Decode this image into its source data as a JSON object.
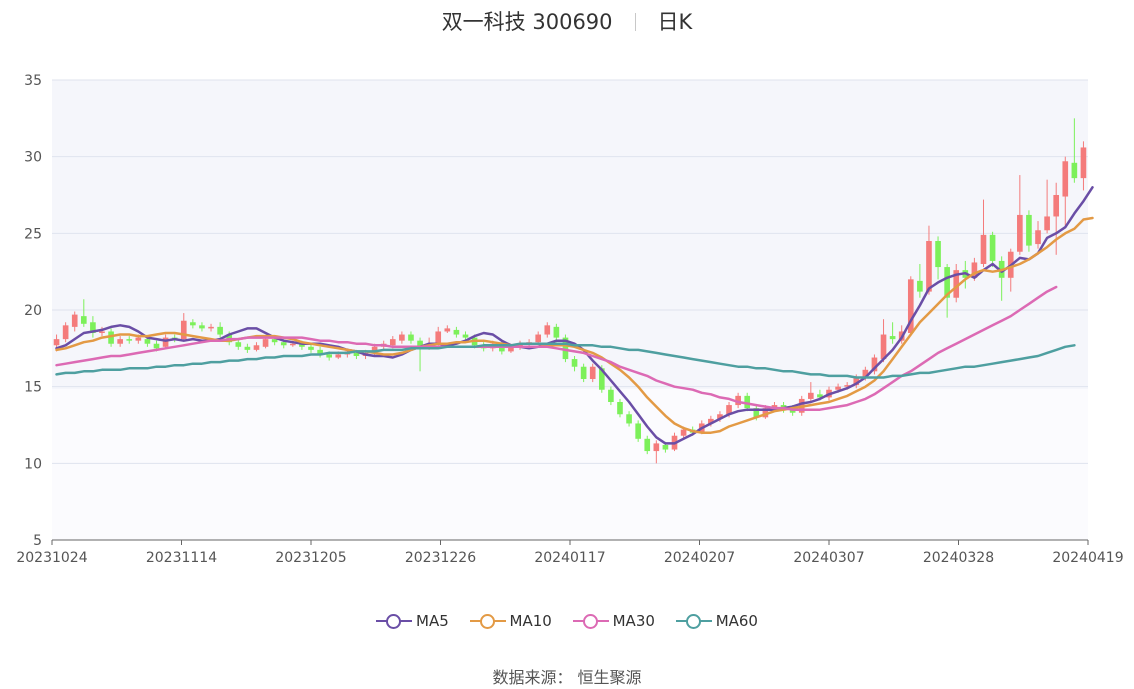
{
  "title": {
    "name": "双一科技 300690",
    "period": "日K"
  },
  "source": {
    "label": "数据来源：",
    "value": "恒生聚源"
  },
  "colors": {
    "up": "#f47b7b",
    "down": "#7cf05a",
    "MA5": "#6a4ea6",
    "MA10": "#e39a45",
    "MA30": "#dc6ab4",
    "MA60": "#4e9fa0",
    "plotBg": "#f5f6fb",
    "grid": "#dfe3ee"
  },
  "chart_data": {
    "type": "candlestick",
    "ylim": [
      5,
      35
    ],
    "yticks": [
      5,
      10,
      15,
      20,
      25,
      30,
      35
    ],
    "xticks": [
      "20231024",
      "20231114",
      "20231205",
      "20231226",
      "20240117",
      "20240207",
      "20240307",
      "20240328",
      "20240419"
    ],
    "legend_position": "bottom",
    "grid": true,
    "candles": [
      [
        17.7,
        18.1,
        18.4,
        17.3
      ],
      [
        18.1,
        19.0,
        19.2,
        17.9
      ],
      [
        18.9,
        19.7,
        19.9,
        18.6
      ],
      [
        19.6,
        19.1,
        20.7,
        18.9
      ],
      [
        19.2,
        18.5,
        19.6,
        18.2
      ],
      [
        18.5,
        18.6,
        18.9,
        18.3
      ],
      [
        18.6,
        17.8,
        18.8,
        17.6
      ],
      [
        17.8,
        18.1,
        18.3,
        17.6
      ],
      [
        18.1,
        18.0,
        18.3,
        17.8
      ],
      [
        18.0,
        18.2,
        18.4,
        17.8
      ],
      [
        18.1,
        17.8,
        18.3,
        17.6
      ],
      [
        17.8,
        17.5,
        18.0,
        17.3
      ],
      [
        17.6,
        18.2,
        18.4,
        17.5
      ],
      [
        18.2,
        18.1,
        18.4,
        17.9
      ],
      [
        18.1,
        19.3,
        19.8,
        18.0
      ],
      [
        19.2,
        19.0,
        19.4,
        18.8
      ],
      [
        19.0,
        18.8,
        19.2,
        18.6
      ],
      [
        18.8,
        18.9,
        19.1,
        18.6
      ],
      [
        18.9,
        18.4,
        19.2,
        18.2
      ],
      [
        18.4,
        17.9,
        18.6,
        17.7
      ],
      [
        17.9,
        17.6,
        18.1,
        17.4
      ],
      [
        17.6,
        17.4,
        17.8,
        17.2
      ],
      [
        17.4,
        17.7,
        17.9,
        17.3
      ],
      [
        17.6,
        18.1,
        18.3,
        17.5
      ],
      [
        18.1,
        17.9,
        18.3,
        17.7
      ],
      [
        17.9,
        17.7,
        18.1,
        17.5
      ],
      [
        17.7,
        17.8,
        18.0,
        17.6
      ],
      [
        17.8,
        17.6,
        18.0,
        17.4
      ],
      [
        17.6,
        17.4,
        17.8,
        17.2
      ],
      [
        17.4,
        17.1,
        17.6,
        16.9
      ],
      [
        17.1,
        16.9,
        17.3,
        16.7
      ],
      [
        16.9,
        17.1,
        17.3,
        16.8
      ],
      [
        17.1,
        17.3,
        17.5,
        16.9
      ],
      [
        17.2,
        17.0,
        17.4,
        16.8
      ],
      [
        17.0,
        17.2,
        17.4,
        16.8
      ],
      [
        17.2,
        17.6,
        17.8,
        17.0
      ],
      [
        17.6,
        17.8,
        18.0,
        17.4
      ],
      [
        17.7,
        18.1,
        18.3,
        17.5
      ],
      [
        18.0,
        18.4,
        18.6,
        17.8
      ],
      [
        18.4,
        18.0,
        18.6,
        17.8
      ],
      [
        18.0,
        17.6,
        18.2,
        16.0
      ],
      [
        17.6,
        17.8,
        18.2,
        17.4
      ],
      [
        17.8,
        18.6,
        18.9,
        17.6
      ],
      [
        18.6,
        18.8,
        19.0,
        18.5
      ],
      [
        18.7,
        18.4,
        18.9,
        18.2
      ],
      [
        18.4,
        18.2,
        18.6,
        18.0
      ],
      [
        18.2,
        17.7,
        18.4,
        17.5
      ],
      [
        17.7,
        17.5,
        17.9,
        17.3
      ],
      [
        17.5,
        17.8,
        18.0,
        17.3
      ],
      [
        17.8,
        17.3,
        18.0,
        17.1
      ],
      [
        17.3,
        17.6,
        17.8,
        17.2
      ],
      [
        17.6,
        17.8,
        18.0,
        17.4
      ],
      [
        17.8,
        17.9,
        18.1,
        17.6
      ],
      [
        17.9,
        18.4,
        18.6,
        17.7
      ],
      [
        18.4,
        19.0,
        19.2,
        18.2
      ],
      [
        18.9,
        18.2,
        19.1,
        17.9
      ],
      [
        18.2,
        16.8,
        18.4,
        16.6
      ],
      [
        16.8,
        16.3,
        17.0,
        16.0
      ],
      [
        16.3,
        15.5,
        16.5,
        15.3
      ],
      [
        15.5,
        16.3,
        16.5,
        15.3
      ],
      [
        16.2,
        14.8,
        16.4,
        14.6
      ],
      [
        14.8,
        14.0,
        15.0,
        13.8
      ],
      [
        14.0,
        13.2,
        14.2,
        13.0
      ],
      [
        13.2,
        12.6,
        13.4,
        12.4
      ],
      [
        12.6,
        11.6,
        12.8,
        11.4
      ],
      [
        11.6,
        10.8,
        11.8,
        10.6
      ],
      [
        10.8,
        11.3,
        11.5,
        10.0
      ],
      [
        11.2,
        10.9,
        11.4,
        10.7
      ],
      [
        10.9,
        11.8,
        12.0,
        10.8
      ],
      [
        11.8,
        12.2,
        12.4,
        11.6
      ],
      [
        12.2,
        12.0,
        12.4,
        11.8
      ],
      [
        12.0,
        12.6,
        12.8,
        11.9
      ],
      [
        12.6,
        12.9,
        13.1,
        12.4
      ],
      [
        12.9,
        13.2,
        13.4,
        12.7
      ],
      [
        13.2,
        13.8,
        14.0,
        13.0
      ],
      [
        13.8,
        14.4,
        14.6,
        13.6
      ],
      [
        14.4,
        13.6,
        14.6,
        13.4
      ],
      [
        13.6,
        13.0,
        13.8,
        12.8
      ],
      [
        13.0,
        13.6,
        13.8,
        12.9
      ],
      [
        13.6,
        13.8,
        14.0,
        13.4
      ],
      [
        13.8,
        13.6,
        14.0,
        13.3
      ],
      [
        13.6,
        13.3,
        13.8,
        13.1
      ],
      [
        13.3,
        14.2,
        14.4,
        13.1
      ],
      [
        14.2,
        14.6,
        15.3,
        14.0
      ],
      [
        14.5,
        14.3,
        14.8,
        14.1
      ],
      [
        14.3,
        14.8,
        15.0,
        14.1
      ],
      [
        14.8,
        15.0,
        15.2,
        14.6
      ],
      [
        15.0,
        15.1,
        15.3,
        14.8
      ],
      [
        15.1,
        15.6,
        15.8,
        14.9
      ],
      [
        15.6,
        16.1,
        16.3,
        15.4
      ],
      [
        16.0,
        16.9,
        17.1,
        15.8
      ],
      [
        16.8,
        18.4,
        19.4,
        16.6
      ],
      [
        18.3,
        18.1,
        19.2,
        17.8
      ],
      [
        18.0,
        18.6,
        19.0,
        17.8
      ],
      [
        18.5,
        22.0,
        22.2,
        18.3
      ],
      [
        21.9,
        21.2,
        23.0,
        20.8
      ],
      [
        21.2,
        24.5,
        25.5,
        21.0
      ],
      [
        24.5,
        22.8,
        24.8,
        22.0
      ],
      [
        22.8,
        20.8,
        23.0,
        19.5
      ],
      [
        20.8,
        22.6,
        23.0,
        20.5
      ],
      [
        22.6,
        22.1,
        23.2,
        21.4
      ],
      [
        22.1,
        23.1,
        23.4,
        21.9
      ],
      [
        23.0,
        24.9,
        27.2,
        22.8
      ],
      [
        24.9,
        23.2,
        25.1,
        22.8
      ],
      [
        23.2,
        22.1,
        23.5,
        20.6
      ],
      [
        22.1,
        23.8,
        24.0,
        21.2
      ],
      [
        23.8,
        26.2,
        28.8,
        23.6
      ],
      [
        26.2,
        24.2,
        26.5,
        23.8
      ],
      [
        24.3,
        25.2,
        25.8,
        24.0
      ],
      [
        25.2,
        26.1,
        28.5,
        25.0
      ],
      [
        26.1,
        27.5,
        28.3,
        23.6
      ],
      [
        27.4,
        29.7,
        30.0,
        25.5
      ],
      [
        29.6,
        28.6,
        32.5,
        28.3
      ],
      [
        28.6,
        30.6,
        31.0,
        27.8
      ]
    ],
    "series": [
      {
        "name": "MA5",
        "values": [
          17.5,
          17.7,
          18.1,
          18.5,
          18.6,
          18.7,
          18.9,
          19.0,
          18.9,
          18.6,
          18.2,
          18.1,
          18.0,
          18.1,
          18.0,
          18.1,
          18.0,
          18.0,
          18.1,
          18.4,
          18.6,
          18.8,
          18.8,
          18.5,
          18.2,
          18.0,
          17.9,
          17.8,
          17.8,
          17.8,
          17.7,
          17.6,
          17.4,
          17.3,
          17.1,
          17.0,
          17.0,
          16.9,
          17.1,
          17.4,
          17.6,
          17.8,
          17.8,
          17.7,
          17.8,
          18.0,
          18.3,
          18.5,
          18.4,
          18.0,
          17.7,
          17.6,
          17.5,
          17.6,
          17.8,
          18.0,
          18.0,
          17.8,
          17.4,
          16.7,
          16.1,
          15.4,
          14.7,
          14.0,
          13.2,
          12.4,
          11.7,
          11.3,
          11.3,
          11.6,
          11.9,
          12.3,
          12.6,
          12.9,
          13.2,
          13.4,
          13.5,
          13.5,
          13.5,
          13.5,
          13.6,
          13.7,
          13.9,
          14.0,
          14.2,
          14.5,
          14.7,
          14.9,
          15.2,
          15.6,
          16.2,
          16.8,
          17.4,
          18.2,
          19.3,
          20.3,
          21.4,
          21.8,
          22.1,
          22.3,
          22.4,
          22.1,
          22.6,
          23.0,
          22.5,
          22.9,
          23.4,
          23.3,
          23.7,
          24.7,
          25.0,
          25.4,
          26.3,
          27.1,
          28.0
        ]
      },
      {
        "name": "MA10",
        "values": [
          17.4,
          17.5,
          17.7,
          17.9,
          18.0,
          18.2,
          18.3,
          18.4,
          18.4,
          18.3,
          18.3,
          18.4,
          18.5,
          18.5,
          18.4,
          18.3,
          18.2,
          18.1,
          18.0,
          18.0,
          18.1,
          18.2,
          18.3,
          18.3,
          18.3,
          18.2,
          18.1,
          17.9,
          17.8,
          17.7,
          17.6,
          17.5,
          17.4,
          17.3,
          17.3,
          17.2,
          17.1,
          17.1,
          17.2,
          17.4,
          17.6,
          17.7,
          17.8,
          17.8,
          17.9,
          17.9,
          18.0,
          18.0,
          17.9,
          17.8,
          17.7,
          17.6,
          17.6,
          17.6,
          17.7,
          17.7,
          17.7,
          17.6,
          17.4,
          17.2,
          16.9,
          16.5,
          16.1,
          15.6,
          15.0,
          14.3,
          13.7,
          13.1,
          12.6,
          12.3,
          12.1,
          12.0,
          12.0,
          12.1,
          12.4,
          12.6,
          12.8,
          13.0,
          13.2,
          13.4,
          13.5,
          13.6,
          13.7,
          13.8,
          13.9,
          14.0,
          14.2,
          14.4,
          14.7,
          15.0,
          15.4,
          16.0,
          16.8,
          17.6,
          18.4,
          19.2,
          19.8,
          20.4,
          21.0,
          21.5,
          22.0,
          22.4,
          22.6,
          22.5,
          22.6,
          22.8,
          23.0,
          23.3,
          23.7,
          24.1,
          24.6,
          25.0,
          25.3,
          25.9,
          26.0
        ]
      },
      {
        "name": "MA30",
        "values": [
          16.4,
          16.5,
          16.6,
          16.7,
          16.8,
          16.9,
          17.0,
          17.0,
          17.1,
          17.2,
          17.3,
          17.4,
          17.5,
          17.6,
          17.7,
          17.8,
          17.9,
          18.0,
          18.0,
          18.1,
          18.1,
          18.2,
          18.2,
          18.2,
          18.2,
          18.2,
          18.2,
          18.2,
          18.1,
          18.0,
          18.0,
          17.9,
          17.9,
          17.8,
          17.8,
          17.7,
          17.7,
          17.6,
          17.6,
          17.6,
          17.6,
          17.6,
          17.6,
          17.6,
          17.6,
          17.6,
          17.6,
          17.6,
          17.6,
          17.6,
          17.6,
          17.6,
          17.6,
          17.6,
          17.6,
          17.5,
          17.4,
          17.3,
          17.2,
          17.0,
          16.8,
          16.6,
          16.3,
          16.1,
          15.9,
          15.7,
          15.4,
          15.2,
          15.0,
          14.9,
          14.8,
          14.6,
          14.5,
          14.3,
          14.2,
          14.0,
          13.9,
          13.8,
          13.7,
          13.6,
          13.6,
          13.5,
          13.5,
          13.5,
          13.5,
          13.6,
          13.7,
          13.8,
          14.0,
          14.2,
          14.5,
          14.9,
          15.3,
          15.7,
          16.0,
          16.4,
          16.8,
          17.2,
          17.5,
          17.8,
          18.1,
          18.4,
          18.7,
          19.0,
          19.3,
          19.6,
          20.0,
          20.4,
          20.8,
          21.2,
          21.5
        ]
      },
      {
        "name": "MA60",
        "values": [
          15.8,
          15.9,
          15.9,
          16.0,
          16.0,
          16.1,
          16.1,
          16.1,
          16.2,
          16.2,
          16.2,
          16.3,
          16.3,
          16.4,
          16.4,
          16.5,
          16.5,
          16.6,
          16.6,
          16.7,
          16.7,
          16.8,
          16.8,
          16.9,
          16.9,
          17.0,
          17.0,
          17.0,
          17.1,
          17.1,
          17.2,
          17.2,
          17.2,
          17.3,
          17.3,
          17.3,
          17.4,
          17.4,
          17.4,
          17.5,
          17.5,
          17.5,
          17.5,
          17.6,
          17.6,
          17.6,
          17.6,
          17.7,
          17.7,
          17.7,
          17.7,
          17.8,
          17.8,
          17.8,
          17.8,
          17.8,
          17.8,
          17.7,
          17.7,
          17.7,
          17.6,
          17.6,
          17.5,
          17.4,
          17.4,
          17.3,
          17.2,
          17.1,
          17.0,
          16.9,
          16.8,
          16.7,
          16.6,
          16.5,
          16.4,
          16.3,
          16.3,
          16.2,
          16.2,
          16.1,
          16.0,
          16.0,
          15.9,
          15.8,
          15.8,
          15.7,
          15.7,
          15.7,
          15.6,
          15.6,
          15.6,
          15.6,
          15.7,
          15.7,
          15.8,
          15.9,
          15.9,
          16.0,
          16.1,
          16.2,
          16.3,
          16.3,
          16.4,
          16.5,
          16.6,
          16.7,
          16.8,
          16.9,
          17.0,
          17.2,
          17.4,
          17.6,
          17.7
        ]
      }
    ]
  }
}
